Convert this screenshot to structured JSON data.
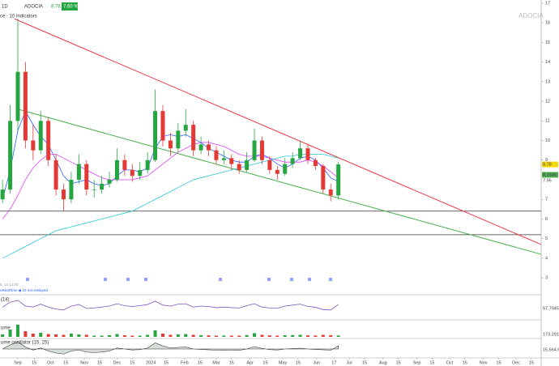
{
  "header": {
    "interval": "1D",
    "symbol": "ADOCIA",
    "price": "8.78",
    "change": "7.60 %",
    "indicators": "ce · 10 indicators",
    "watermark": "ADOCIA",
    "time_note": "5, 13 14:00",
    "delay_note": "oRealTime ◆ 15 min Delayed"
  },
  "chart_data": {
    "type": "candlestick",
    "x": [
      -14,
      -7,
      0,
      7,
      14,
      21,
      28,
      35,
      42,
      49,
      56,
      63,
      70,
      77,
      84,
      91,
      98,
      105,
      112,
      119,
      126,
      133,
      140,
      147,
      154,
      161,
      168,
      175,
      182,
      189,
      196,
      203,
      210,
      217,
      224,
      231,
      238,
      245,
      252,
      259,
      266,
      273,
      280,
      287,
      294
    ],
    "open": [
      7.0,
      7.5,
      11,
      13.5,
      10,
      9.5,
      11,
      9,
      7.5,
      7,
      8,
      8.8,
      7.5,
      7.5,
      7.8,
      8,
      9,
      8.5,
      8.2,
      8.5,
      9,
      11.5,
      10,
      9.6,
      10.5,
      10.8,
      9.5,
      9.8,
      9.5,
      9,
      9.1,
      8.8,
      8.5,
      9,
      10,
      9,
      8.5,
      8.3,
      8.8,
      9.1,
      9.6,
      9,
      8.7,
      7.5,
      7.2
    ],
    "high": [
      8.0,
      11.8,
      16.2,
      14,
      10.8,
      11.5,
      11.2,
      9.3,
      7.8,
      8.4,
      9.3,
      9,
      8,
      8.2,
      8.4,
      9.6,
      9.3,
      8.8,
      8.9,
      9.4,
      12.6,
      11.8,
      10.4,
      10.9,
      11.6,
      11,
      10.2,
      10,
      9.7,
      9.5,
      9.3,
      9,
      9.4,
      10.6,
      10.2,
      9.2,
      8.7,
      9.1,
      9.4,
      10,
      9.8,
      9.1,
      8.8,
      7.8,
      8.9
    ],
    "low": [
      6.8,
      7.3,
      10.5,
      9.6,
      9.0,
      9.3,
      8.7,
      7.2,
      6.4,
      6.8,
      7.8,
      7.2,
      7.1,
      7.3,
      7.6,
      7.9,
      8.2,
      7.9,
      8.0,
      8.3,
      8.9,
      9.7,
      9.2,
      9.4,
      10.2,
      9.2,
      9.3,
      9.2,
      8.8,
      8.8,
      8.5,
      8.3,
      8.4,
      8.9,
      8.8,
      8.3,
      8.0,
      8.2,
      8.6,
      9.0,
      8.8,
      8.5,
      7.3,
      6.9,
      7.0
    ],
    "close": [
      7.5,
      11,
      13.5,
      10,
      9.5,
      11,
      9,
      7.5,
      7,
      8,
      8.8,
      7.5,
      7.5,
      7.8,
      8,
      9,
      8.5,
      8.2,
      8.5,
      9,
      11.5,
      10,
      9.6,
      10.5,
      10.8,
      9.5,
      9.8,
      9.5,
      9,
      9.1,
      8.8,
      8.5,
      9,
      10,
      9,
      8.5,
      8.3,
      8.8,
      9.1,
      9.6,
      9,
      8.7,
      7.5,
      7.2,
      8.78
    ],
    "up_color": "#26a641",
    "down_color": "#e53935",
    "series": [
      {
        "color": "#2962ff",
        "values": [
          7.0,
          8.5,
          10.5,
          11.5,
          10.8,
          10.2,
          9.8,
          9.0,
          8.2,
          7.8,
          7.9,
          8.0,
          7.8,
          7.7,
          7.8,
          8.2,
          8.5,
          8.5,
          8.4,
          8.6,
          9.6,
          10.2,
          10.3,
          10.2,
          10.3,
          10.1,
          9.9,
          9.6,
          9.4,
          9.2,
          9.0,
          8.9,
          8.9,
          9.2,
          9.3,
          9.1,
          8.8,
          8.6,
          8.8,
          9.1,
          9.2,
          9.0,
          8.6,
          8.1,
          7.9
        ]
      },
      {
        "color": "#e040fb",
        "values": [
          6.0,
          6.5,
          7.2,
          8.0,
          8.6,
          9.0,
          9.3,
          9.3,
          9.1,
          8.9,
          8.7,
          8.5,
          8.3,
          8.1,
          8.0,
          8.0,
          8.0,
          8.0,
          8.1,
          8.2,
          8.5,
          8.8,
          9.1,
          9.4,
          9.6,
          9.8,
          9.9,
          9.9,
          9.8,
          9.7,
          9.5,
          9.3,
          9.2,
          9.2,
          9.2,
          9.1,
          9.0,
          8.9,
          8.9,
          8.9,
          9.0,
          8.9,
          8.7,
          8.4,
          8.1
        ]
      },
      {
        "color": "#26c6da",
        "values": [
          4.0,
          4.2,
          4.4,
          4.6,
          4.8,
          5.0,
          5.2,
          5.4,
          5.5,
          5.6,
          5.7,
          5.8,
          5.9,
          6.0,
          6.1,
          6.2,
          6.3,
          6.4,
          6.6,
          6.8,
          7.0,
          7.2,
          7.4,
          7.6,
          7.8,
          8.0,
          8.1,
          8.2,
          8.3,
          8.4,
          8.5,
          8.6,
          8.7,
          8.8,
          8.9,
          9.0,
          9.1,
          9.2,
          9.2,
          9.3,
          9.3,
          9.3,
          9.3,
          9.2,
          9.1
        ]
      }
    ],
    "trend_lines": [
      {
        "color": "#f23645",
        "x": [
          -3,
          480
        ],
        "y": [
          16.2,
          4.7
        ]
      },
      {
        "color": "#4caf50",
        "x": [
          0,
          480
        ],
        "y": [
          11.6,
          4.2
        ]
      }
    ],
    "hlines": [
      6.4,
      5.2
    ],
    "price_labels": [
      {
        "value": 8.78,
        "label": "8.78",
        "color": "#f5d90a"
      },
      {
        "value": 8.25,
        "label": "8.2546",
        "color": "#4caf50"
      },
      {
        "value": 7.96,
        "label": "7.96",
        "color": "#ffffff"
      }
    ],
    "xlim": [
      -16.34,
      480
    ],
    "ylim": [
      2.8,
      17.16
    ],
    "yticks": [
      3,
      4,
      5,
      6,
      7,
      8,
      9,
      10,
      11,
      12,
      13,
      14,
      15,
      16,
      17
    ],
    "xticks": [
      {
        "value": 0,
        "label": "Sep"
      },
      15,
      {
        "value": 30,
        "label": "Oct"
      },
      {
        "value": 44,
        "label": "15"
      },
      {
        "value": 61,
        "label": "Nov"
      },
      {
        "value": 75,
        "label": "15"
      },
      {
        "value": 91,
        "label": "Dec"
      },
      {
        "value": 105,
        "label": "15"
      },
      {
        "value": 122,
        "label": "2024"
      },
      {
        "value": 136,
        "label": "15"
      },
      {
        "value": 153,
        "label": "Feb"
      },
      {
        "value": 167,
        "label": "15"
      },
      {
        "value": 182,
        "label": "Mar"
      },
      {
        "value": 196,
        "label": "15"
      },
      {
        "value": 213,
        "label": "Apr"
      },
      {
        "value": 227,
        "label": "15"
      },
      {
        "value": 243,
        "label": "May"
      },
      {
        "value": 257,
        "label": "15"
      },
      {
        "value": 274,
        "label": "Jun"
      },
      {
        "value": 290,
        "label": "17"
      },
      {
        "value": 304,
        "label": "Jul"
      },
      {
        "value": 318,
        "label": "15"
      },
      {
        "value": 335,
        "label": "Aug"
      },
      {
        "value": 349,
        "label": "15"
      },
      {
        "value": 366,
        "label": "Sep"
      },
      {
        "value": 380,
        "label": "15"
      },
      {
        "value": 396,
        "label": "Oct"
      },
      {
        "value": 410,
        "label": "15"
      },
      {
        "value": 427,
        "label": "Nov"
      },
      {
        "value": 441,
        "label": "15"
      },
      {
        "value": 457,
        "label": "Dec"
      },
      {
        "value": 471,
        "label": "15"
      }
    ],
    "rsi": {
      "label": "(14)",
      "value_label": "57.79456",
      "color": "#7e57c2",
      "ylim": [
        0,
        100
      ],
      "values": [
        45,
        70,
        80,
        50,
        45,
        60,
        45,
        35,
        30,
        50,
        58,
        38,
        40,
        45,
        50,
        62,
        52,
        48,
        52,
        58,
        75,
        55,
        50,
        60,
        62,
        45,
        50,
        48,
        42,
        45,
        42,
        40,
        52,
        62,
        45,
        40,
        38,
        50,
        55,
        60,
        48,
        44,
        32,
        30,
        57.79
      ]
    },
    "volume": {
      "label": "ume",
      "value_label": "173.291",
      "ylim": [
        0,
        1600
      ],
      "values": [
        300,
        900,
        1500,
        700,
        400,
        500,
        350,
        300,
        250,
        400,
        300,
        250,
        150,
        150,
        200,
        350,
        200,
        150,
        150,
        250,
        800,
        400,
        250,
        300,
        350,
        250,
        200,
        180,
        150,
        160,
        150,
        140,
        220,
        450,
        250,
        180,
        150,
        200,
        220,
        250,
        180,
        160,
        250,
        200,
        173.291
      ]
    },
    "oscillator": {
      "label": "ume oscillator (15, 25)",
      "value_label": "15,664.62",
      "ylim": [
        -40000,
        40000
      ],
      "values": [
        0,
        20000,
        35000,
        10000,
        -5000,
        5000,
        -10000,
        -20000,
        -25000,
        -10000,
        -5000,
        -15000,
        -18000,
        -15000,
        -10000,
        5000,
        0,
        -5000,
        -3000,
        5000,
        30000,
        15000,
        5000,
        8000,
        10000,
        0,
        -2000,
        -4000,
        -6000,
        -5000,
        -6000,
        -7000,
        0,
        12000,
        3000,
        -3000,
        -5000,
        0,
        2000,
        4000,
        0,
        -2000,
        -4000,
        -6000,
        15664.62
      ]
    }
  }
}
